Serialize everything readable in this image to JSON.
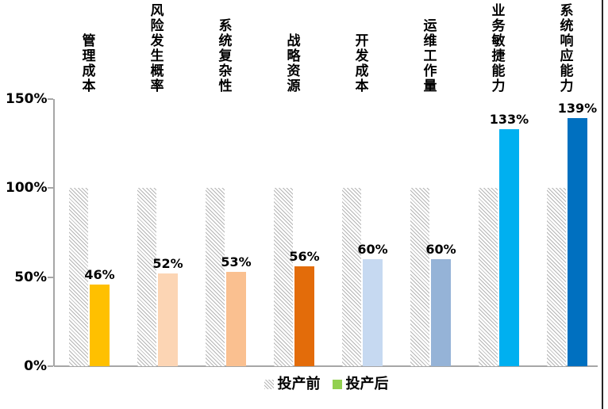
{
  "chart_data": {
    "type": "bar",
    "title": "",
    "categories": [
      "管理成本",
      "风险发生概率",
      "系统复杂性",
      "战略资源",
      "开发成本",
      "运维工作量",
      "业务敏捷能力",
      "系统响应能力"
    ],
    "series": [
      {
        "name": "投产前",
        "values": [
          100,
          100,
          100,
          100,
          100,
          100,
          100,
          100
        ],
        "fill": "hatched",
        "hatch_color": "#b5b5b5"
      },
      {
        "name": "投产后",
        "values": [
          46,
          52,
          53,
          56,
          60,
          60,
          133,
          139
        ],
        "colors": [
          "#FFC000",
          "#FCD5B4",
          "#FAC090",
          "#E36C0A",
          "#C6D9F1",
          "#95B3D7",
          "#00B0F0",
          "#0070C0"
        ]
      }
    ],
    "data_labels": [
      "46%",
      "52%",
      "53%",
      "56%",
      "60%",
      "60%",
      "133%",
      "139%"
    ],
    "y_ticks": [
      "150%",
      "100%",
      "50%",
      "0%"
    ],
    "ylim": [
      0,
      150
    ],
    "grid": false,
    "legend_position": "bottom-center",
    "legend": [
      {
        "label": "投产前",
        "swatch": "hatched"
      },
      {
        "label": "投产后",
        "swatch": "#92D050"
      }
    ],
    "axis_color": "#a6a6a6",
    "text_color": "#000000"
  },
  "decor": {
    "right_border_color": "#262626"
  }
}
